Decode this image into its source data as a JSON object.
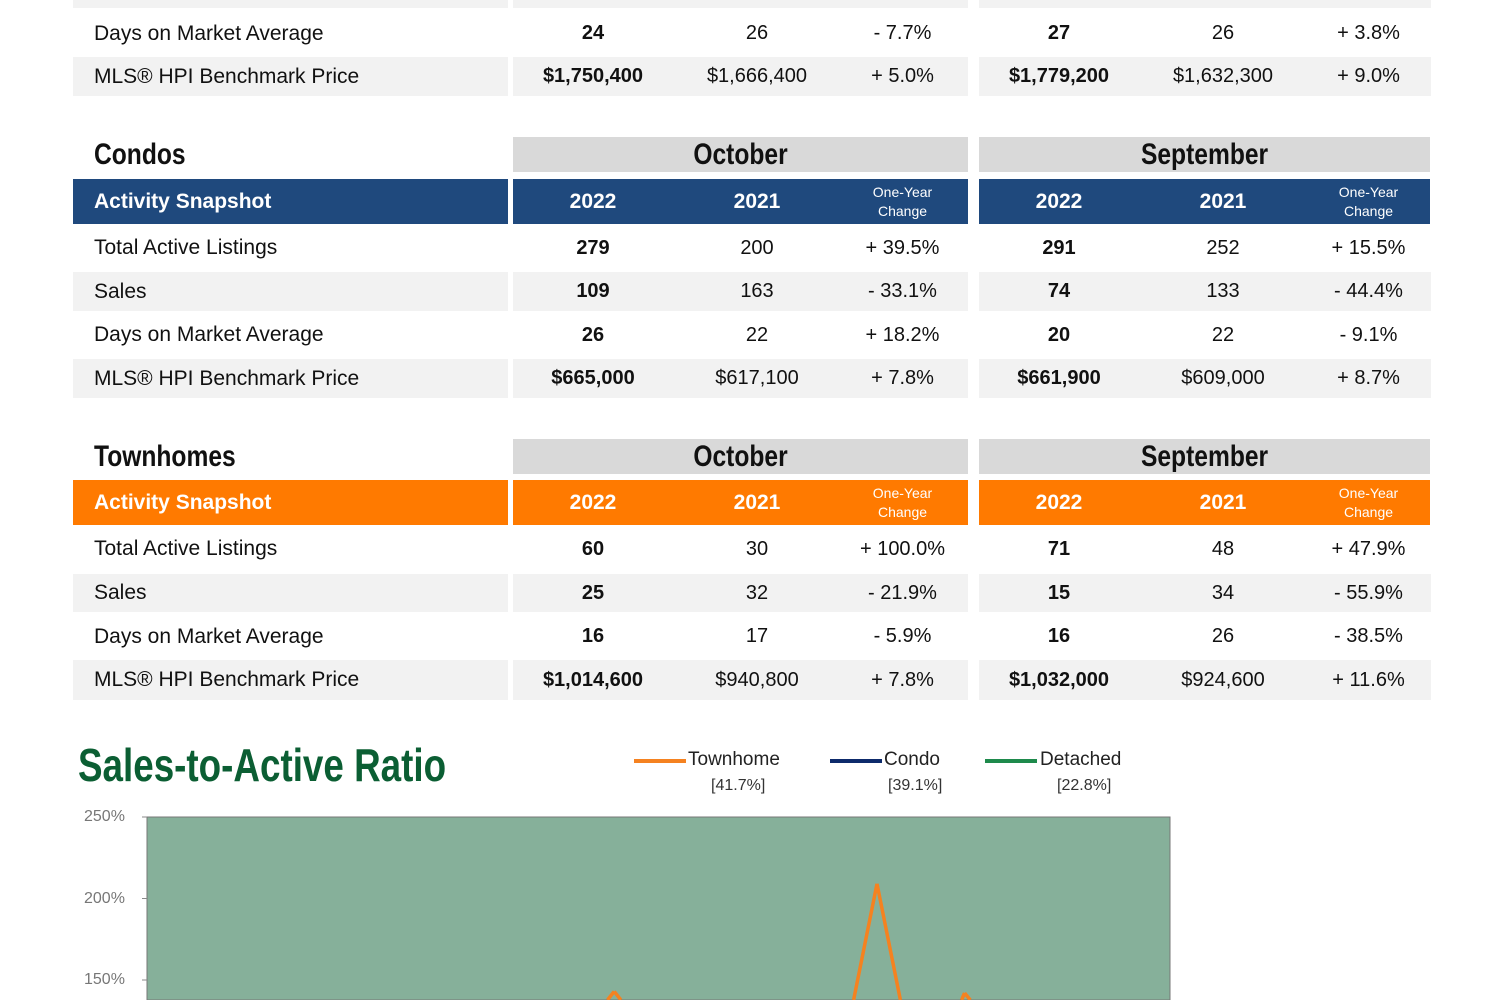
{
  "sections": [
    {
      "id": "detached-partial",
      "title": null,
      "rows": [
        {
          "label": "Days on Market Average",
          "oct": [
            "24",
            "26",
            "- 7.7%"
          ],
          "sep": [
            "27",
            "26",
            "+ 3.8%"
          ]
        },
        {
          "label": "MLS® HPI Benchmark Price",
          "oct": [
            "$1,750,400",
            "$1,666,400",
            "+ 5.0%"
          ],
          "sep": [
            "$1,779,200",
            "$1,632,300",
            "+ 9.0%"
          ]
        }
      ]
    },
    {
      "id": "condos",
      "title": "Condos",
      "header_label": "Activity Snapshot",
      "color": "#1f497d",
      "months": [
        "October",
        "September"
      ],
      "years": [
        "2022",
        "2021"
      ],
      "change_label": [
        "One-Year",
        "Change"
      ],
      "rows": [
        {
          "label": "Total Active Listings",
          "oct": [
            "279",
            "200",
            "+ 39.5%"
          ],
          "sep": [
            "291",
            "252",
            "+ 15.5%"
          ]
        },
        {
          "label": "Sales",
          "oct": [
            "109",
            "163",
            "- 33.1%"
          ],
          "sep": [
            "74",
            "133",
            "- 44.4%"
          ]
        },
        {
          "label": "Days on Market Average",
          "oct": [
            "26",
            "22",
            "+ 18.2%"
          ],
          "sep": [
            "20",
            "22",
            "- 9.1%"
          ]
        },
        {
          "label": "MLS® HPI Benchmark Price",
          "oct": [
            "$665,000",
            "$617,100",
            "+ 7.8%"
          ],
          "sep": [
            "$661,900",
            "$609,000",
            "+ 8.7%"
          ]
        }
      ]
    },
    {
      "id": "townhomes",
      "title": "Townhomes",
      "header_label": "Activity Snapshot",
      "color": "#ff7a00",
      "months": [
        "October",
        "September"
      ],
      "years": [
        "2022",
        "2021"
      ],
      "change_label": [
        "One-Year",
        "Change"
      ],
      "rows": [
        {
          "label": "Total Active Listings",
          "oct": [
            "60",
            "30",
            "+ 100.0%"
          ],
          "sep": [
            "71",
            "48",
            "+ 47.9%"
          ]
        },
        {
          "label": "Sales",
          "oct": [
            "25",
            "32",
            "- 21.9%"
          ],
          "sep": [
            "15",
            "34",
            "- 55.9%"
          ]
        },
        {
          "label": "Days on Market Average",
          "oct": [
            "16",
            "17",
            "- 5.9%"
          ],
          "sep": [
            "16",
            "26",
            "- 38.5%"
          ]
        },
        {
          "label": "MLS® HPI Benchmark Price",
          "oct": [
            "$1,014,600",
            "$940,800",
            "+ 7.8%"
          ],
          "sep": [
            "$1,032,000",
            "$924,600",
            "+ 11.6%"
          ]
        }
      ]
    }
  ],
  "chart_data": {
    "type": "line",
    "title": "Sales-to-Active Ratio",
    "ylabel": "",
    "xlabel": "",
    "yticks": [
      "250%",
      "200%",
      "150%"
    ],
    "ylim": [
      150,
      250
    ],
    "background": "#86b09a",
    "legend_position": "top-right",
    "series": [
      {
        "name": "Townhome",
        "current": "[41.7%]",
        "color": "#f58220",
        "values": [
          100,
          100,
          100,
          100,
          100,
          100,
          100,
          100,
          100,
          100,
          100,
          100,
          100,
          100,
          100,
          120,
          143,
          120,
          100,
          100,
          100,
          100,
          100,
          100,
          120,
          209,
          120,
          100,
          142,
          120,
          100,
          100,
          100,
          100,
          100,
          100
        ]
      },
      {
        "name": "Condo",
        "current": "[39.1%]",
        "color": "#0d2a6b",
        "values": []
      },
      {
        "name": "Detached",
        "current": "[22.8%]",
        "color": "#1e8a4c",
        "values": []
      }
    ]
  }
}
